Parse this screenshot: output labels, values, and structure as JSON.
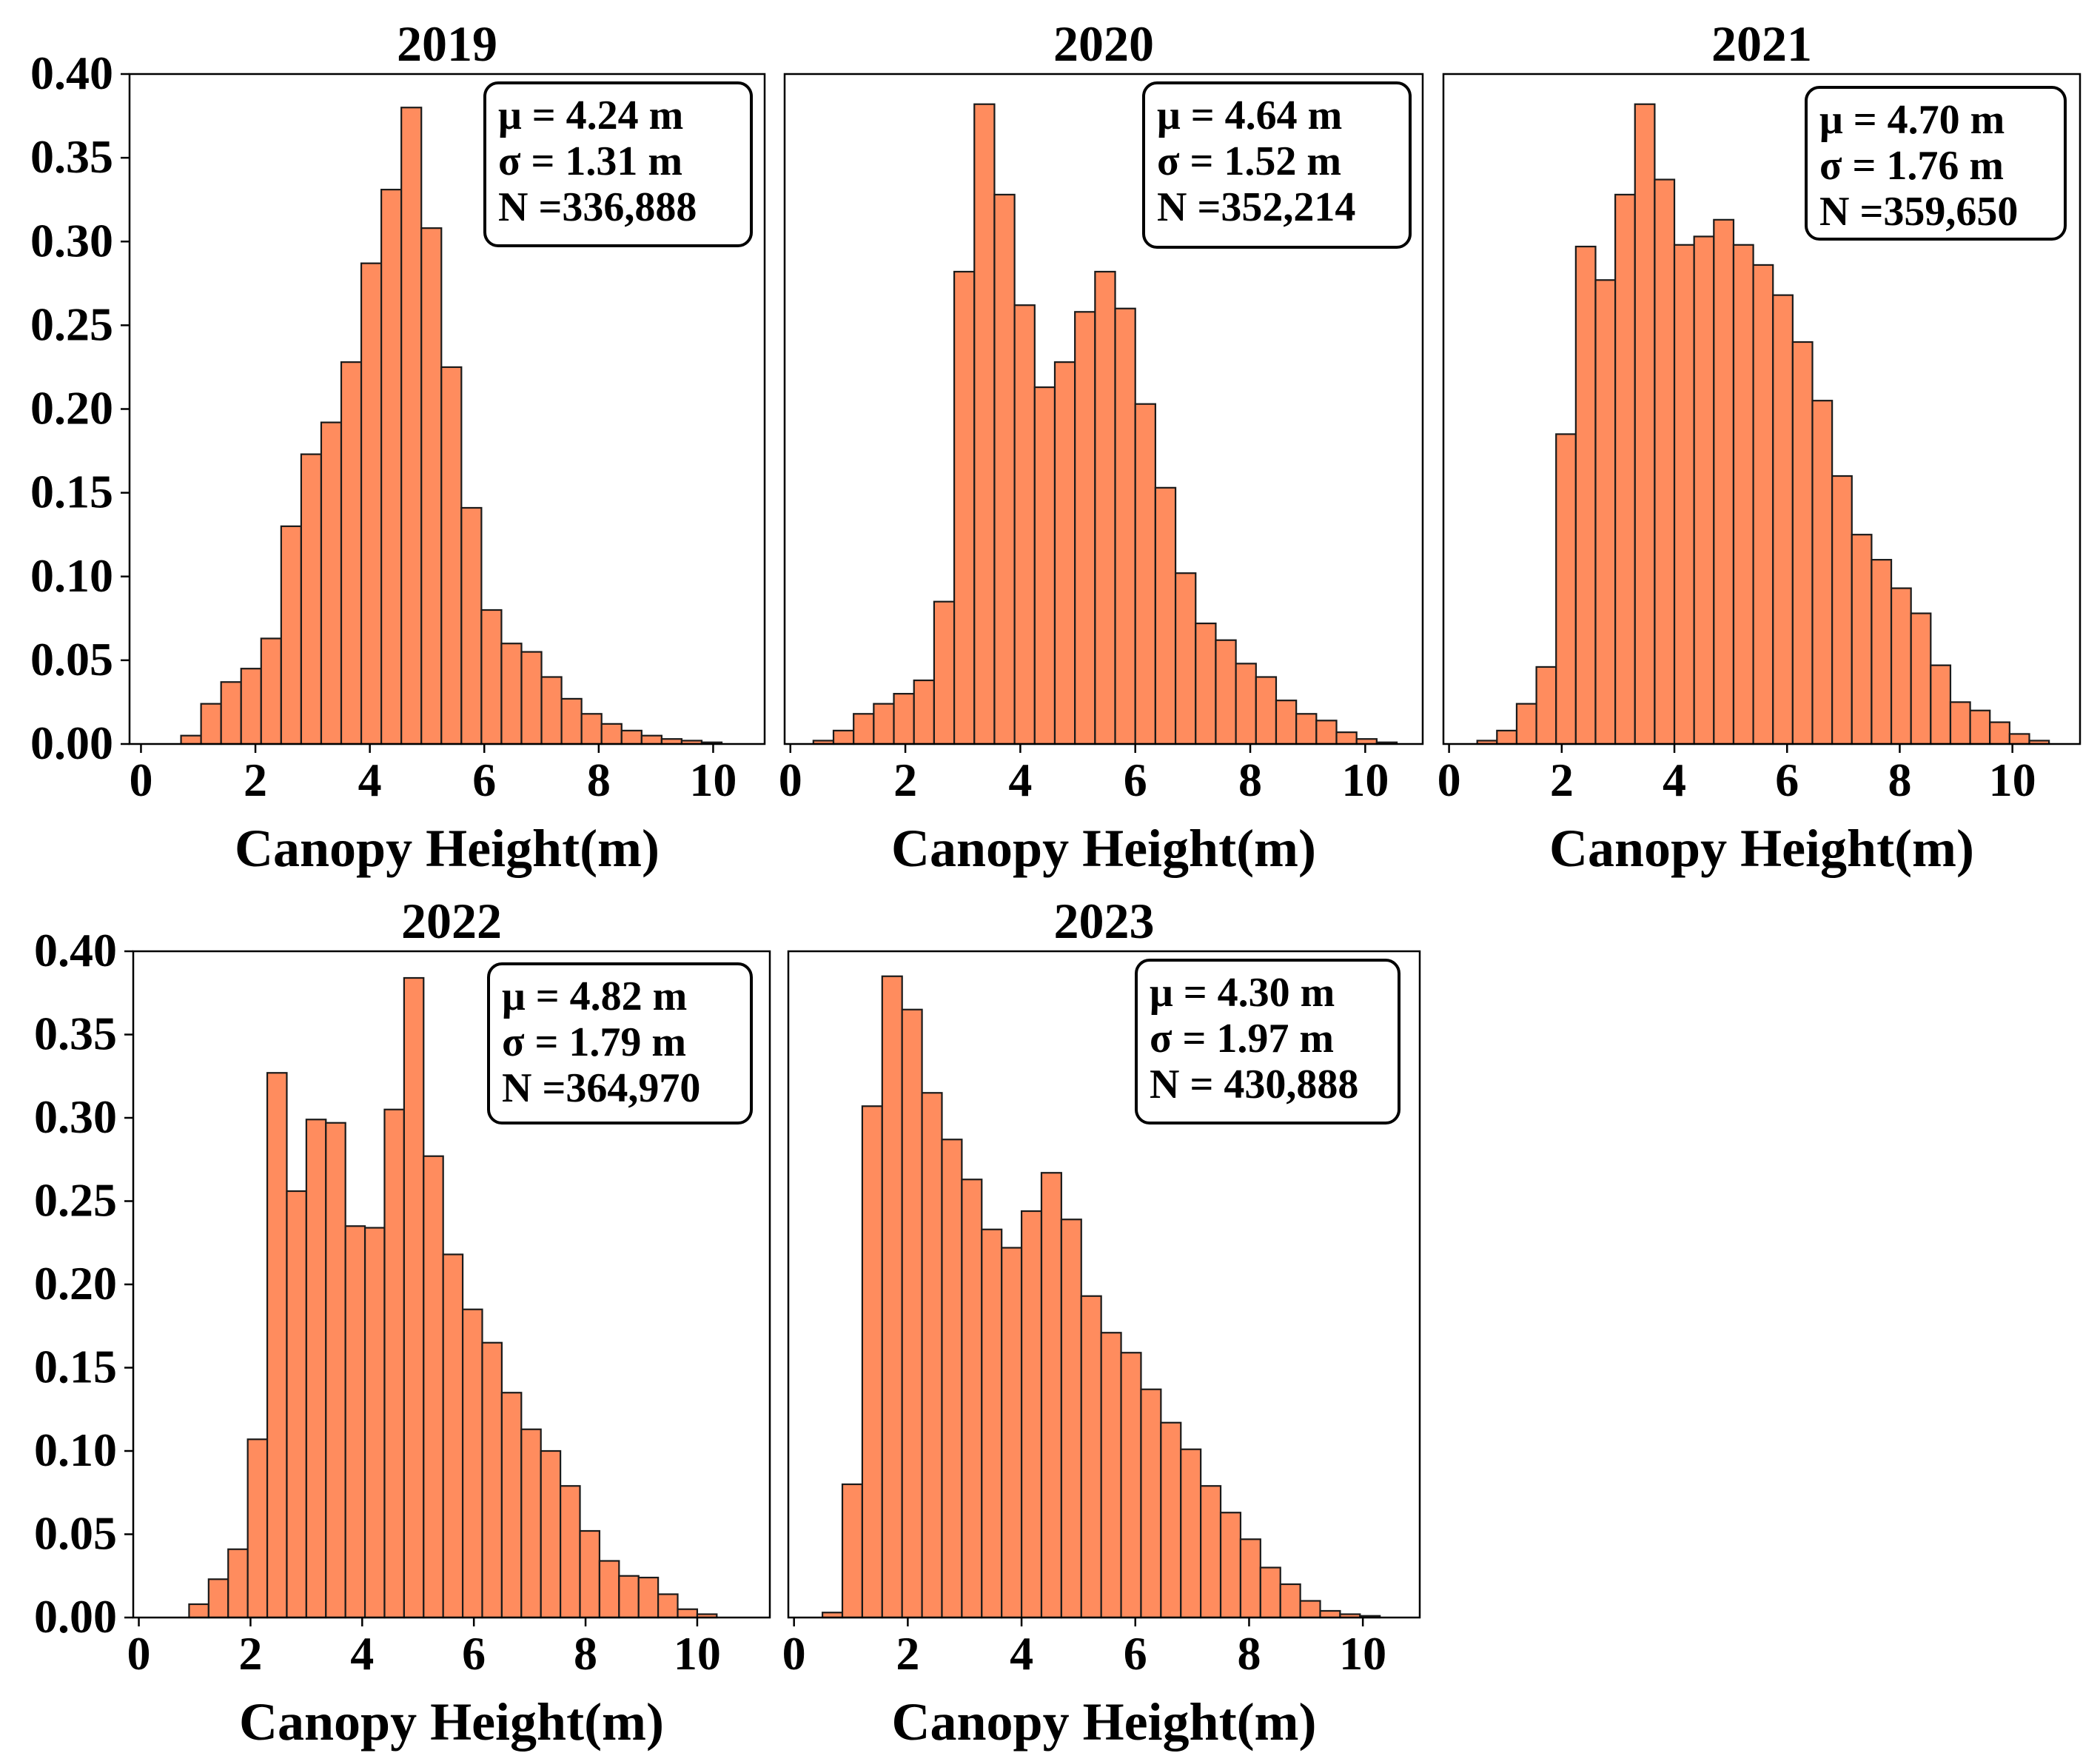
{
  "colors": {
    "bar_fill": "#ff8c5e",
    "bar_edge": "#1a1a1a",
    "axes": "#000000",
    "background": "#ffffff"
  },
  "chart_data": [
    {
      "type": "bar",
      "title": "2019",
      "xlabel": "Canopy Height(m)",
      "ylabel": "",
      "xlim": [
        -0.2,
        10.9
      ],
      "ylim": [
        0,
        0.4
      ],
      "bin_width": 0.35,
      "bin_start": 0.7,
      "values": [
        0.005,
        0.024,
        0.037,
        0.045,
        0.063,
        0.13,
        0.173,
        0.192,
        0.228,
        0.287,
        0.331,
        0.38,
        0.308,
        0.225,
        0.141,
        0.08,
        0.06,
        0.055,
        0.04,
        0.027,
        0.018,
        0.012,
        0.008,
        0.005,
        0.003,
        0.002,
        0.001
      ],
      "x_ticks": [
        "0",
        "2",
        "4",
        "6",
        "8",
        "10"
      ],
      "y_ticks": [
        "0.00",
        "0.05",
        "0.10",
        "0.15",
        "0.20",
        "0.25",
        "0.30",
        "0.35",
        "0.40"
      ],
      "show_y_ticks": true,
      "stats": {
        "mean": "μ = 4.24 m",
        "sd": "σ = 1.31 m",
        "n": "N =336,888"
      }
    },
    {
      "type": "bar",
      "title": "2020",
      "xlabel": "Canopy Height(m)",
      "ylabel": "",
      "xlim": [
        -0.1,
        11.0
      ],
      "ylim": [
        0,
        0.4
      ],
      "bin_width": 0.35,
      "bin_start": 0.4,
      "values": [
        0.002,
        0.008,
        0.018,
        0.024,
        0.03,
        0.038,
        0.085,
        0.282,
        0.382,
        0.328,
        0.262,
        0.213,
        0.228,
        0.258,
        0.282,
        0.26,
        0.203,
        0.153,
        0.102,
        0.072,
        0.062,
        0.048,
        0.04,
        0.026,
        0.018,
        0.014,
        0.007,
        0.003,
        0.001
      ],
      "x_ticks": [
        "0",
        "2",
        "4",
        "6",
        "8",
        "10"
      ],
      "y_ticks": [
        "0.00",
        "0.05",
        "0.10",
        "0.15",
        "0.20",
        "0.25",
        "0.30",
        "0.35",
        "0.40"
      ],
      "show_y_ticks": false,
      "stats": {
        "mean": "μ = 4.64 m",
        "sd": "σ = 1.52 m",
        "n": "N =352,214"
      }
    },
    {
      "type": "bar",
      "title": "2021",
      "xlabel": "Canopy Height(m)",
      "ylabel": "",
      "xlim": [
        -0.1,
        11.2
      ],
      "ylim": [
        0,
        0.4
      ],
      "bin_width": 0.35,
      "bin_start": 0.5,
      "values": [
        0.002,
        0.008,
        0.024,
        0.046,
        0.185,
        0.297,
        0.277,
        0.328,
        0.382,
        0.337,
        0.298,
        0.303,
        0.313,
        0.298,
        0.286,
        0.268,
        0.24,
        0.205,
        0.16,
        0.125,
        0.11,
        0.093,
        0.078,
        0.047,
        0.025,
        0.02,
        0.013,
        0.006,
        0.002
      ],
      "x_ticks": [
        "0",
        "2",
        "4",
        "6",
        "8",
        "10"
      ],
      "y_ticks": [
        "0.00",
        "0.05",
        "0.10",
        "0.15",
        "0.20",
        "0.25",
        "0.30",
        "0.35",
        "0.40"
      ],
      "show_y_ticks": false,
      "stats": {
        "mean": "μ = 4.70 m",
        "sd": "σ = 1.76 m",
        "n": "N =359,650"
      }
    },
    {
      "type": "bar",
      "title": "2022",
      "xlabel": "Canopy Height(m)",
      "ylabel": "",
      "xlim": [
        -0.1,
        11.3
      ],
      "ylim": [
        0,
        0.4
      ],
      "bin_width": 0.35,
      "bin_start": 0.9,
      "values": [
        0.008,
        0.023,
        0.041,
        0.107,
        0.327,
        0.256,
        0.299,
        0.297,
        0.235,
        0.234,
        0.305,
        0.384,
        0.277,
        0.218,
        0.185,
        0.165,
        0.135,
        0.113,
        0.1,
        0.079,
        0.052,
        0.034,
        0.025,
        0.024,
        0.014,
        0.005,
        0.002
      ],
      "x_ticks": [
        "0",
        "2",
        "4",
        "6",
        "8",
        "10"
      ],
      "y_ticks": [
        "0.00",
        "0.05",
        "0.10",
        "0.15",
        "0.20",
        "0.25",
        "0.30",
        "0.35",
        "0.40"
      ],
      "show_y_ticks": true,
      "stats": {
        "mean": "μ = 4.82 m",
        "sd": "σ = 1.79 m",
        "n": "N =364,970"
      }
    },
    {
      "type": "bar",
      "title": "2023",
      "xlabel": "Canopy Height(m)",
      "ylabel": "",
      "xlim": [
        -0.1,
        11.0
      ],
      "ylim": [
        0,
        0.4
      ],
      "bin_width": 0.35,
      "bin_start": 0.5,
      "values": [
        0.003,
        0.08,
        0.307,
        0.385,
        0.365,
        0.315,
        0.287,
        0.263,
        0.233,
        0.222,
        0.244,
        0.267,
        0.239,
        0.193,
        0.171,
        0.159,
        0.137,
        0.117,
        0.101,
        0.079,
        0.063,
        0.047,
        0.03,
        0.02,
        0.01,
        0.004,
        0.002,
        0.001
      ],
      "x_ticks": [
        "0",
        "2",
        "4",
        "6",
        "8",
        "10"
      ],
      "y_ticks": [
        "0.00",
        "0.05",
        "0.10",
        "0.15",
        "0.20",
        "0.25",
        "0.30",
        "0.35",
        "0.40"
      ],
      "show_y_ticks": false,
      "stats": {
        "mean": "μ = 4.30 m",
        "sd": "σ = 1.97 m",
        "n": "N = 430,888"
      }
    }
  ]
}
